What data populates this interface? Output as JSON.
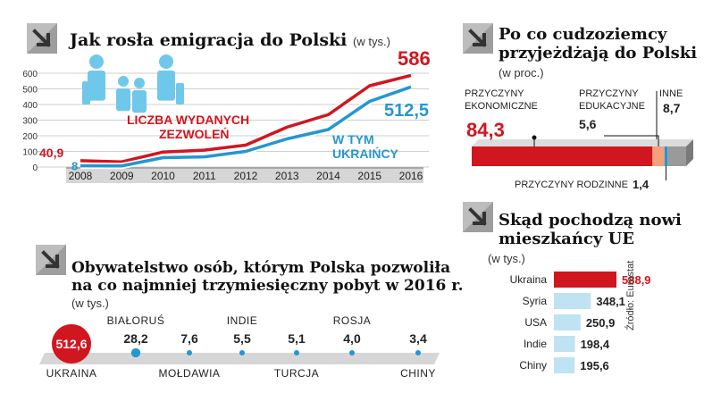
{
  "colors": {
    "red": "#d0161f",
    "blue": "#2596d1",
    "gray_band": "#d6d6d6",
    "dark_band": "#8a8a8a",
    "icon_gray": "#bdbdbd",
    "icon_dark": "#555555",
    "people": "#6fc8ea"
  },
  "section1": {
    "title": "Jak rosła emigracja do Polski",
    "unit": "(w tys.)",
    "icon": "arrow-down-right-icon",
    "permits_label_line1": "LICZBA WYDANYCH",
    "permits_label_line2": "ZEZWOLEŃ",
    "ukr_label_line1": "W TYM",
    "ukr_label_line2": "UKRAIŃCY",
    "start_permits": "40,9",
    "start_ukr": "8",
    "end_permits": "586",
    "end_ukr": "512,5"
  },
  "section2": {
    "title_line1": "Po co cudzoziemcy",
    "title_line2": "przyjeżdżają do Polski",
    "unit": "(w proc.)",
    "icon": "arrow-down-right-icon",
    "econ_label_line1": "PRZYCZYNY",
    "econ_label_line2": "EKONOMICZNE",
    "econ_value": "84,3",
    "edu_label_line1": "PRZYCZYNY",
    "edu_label_line2": "EDUKACYJNE",
    "edu_value": "5,6",
    "other_label": "INNE",
    "other_value": "8,7",
    "family_label": "PRZYCZYNY RODZINNE",
    "family_value": "1,4"
  },
  "section3": {
    "title_line1": "Obywatelstwo osób, którym Polska pozwoliła",
    "title_line2": "na co najmniej trzymiesięczny pobyt w 2016 r.",
    "unit": "(w tys.)",
    "icon": "arrow-down-right-icon"
  },
  "section4": {
    "title_line1": "Skąd pochodzą nowi",
    "title_line2": "mieszkańcy UE",
    "unit": "(w tys.)",
    "icon": "arrow-down-right-icon",
    "source": "Źródło: Eurostat"
  },
  "chart_data": [
    {
      "type": "line",
      "title": "Jak rosła emigracja do Polski",
      "x": [
        "2008",
        "2009",
        "2010",
        "2011",
        "2012",
        "2013",
        "2014",
        "2015",
        "2016"
      ],
      "ylim": [
        0,
        600
      ],
      "yticks": [
        "0",
        "100",
        "200",
        "300",
        "400",
        "500",
        "600"
      ],
      "series": [
        {
          "name": "LICZBA WYDANYCH ZEZWOLEŃ",
          "values": [
            40.9,
            33,
            96,
            108,
            140,
            255,
            335,
            520,
            586
          ]
        },
        {
          "name": "W TYM UKRAIŃCY",
          "values": [
            8,
            7,
            60,
            65,
            100,
            180,
            240,
            420,
            512.5
          ]
        }
      ]
    },
    {
      "type": "bar",
      "title": "Po co cudzoziemcy przyjeżdżają do Polski",
      "stacked": true,
      "categories": [
        "PRZYCZYNY EKONOMICZNE",
        "PRZYCZYNY EDUKACYJNE",
        "PRZYCZYNY RODZINNE",
        "INNE"
      ],
      "values": [
        84.3,
        5.6,
        1.4,
        8.7
      ]
    },
    {
      "type": "scatter",
      "title": "Obywatelstwo osób, którym Polska pozwoliła na co najmniej trzymiesięczny pobyt w 2016 r.",
      "categories": [
        "UKRAINA",
        "BIAŁORUŚ",
        "MOŁDAWIA",
        "INDIE",
        "TURCJA",
        "ROSJA",
        "CHINY"
      ],
      "values": [
        512.6,
        28.2,
        7.6,
        5.5,
        5.1,
        4.0,
        3.4
      ],
      "value_labels": [
        "512,6",
        "28,2",
        "7,6",
        "5,5",
        "5,1",
        "4,0",
        "3,4"
      ]
    },
    {
      "type": "bar",
      "title": "Skąd pochodzą nowi mieszkańcy UE",
      "categories": [
        "Ukraina",
        "Syria",
        "USA",
        "Indie",
        "Chiny"
      ],
      "values": [
        588.9,
        348.1,
        250.9,
        198.4,
        195.6
      ],
      "value_labels": [
        "588,9",
        "348,1",
        "250,9",
        "198,4",
        "195,6"
      ]
    }
  ]
}
